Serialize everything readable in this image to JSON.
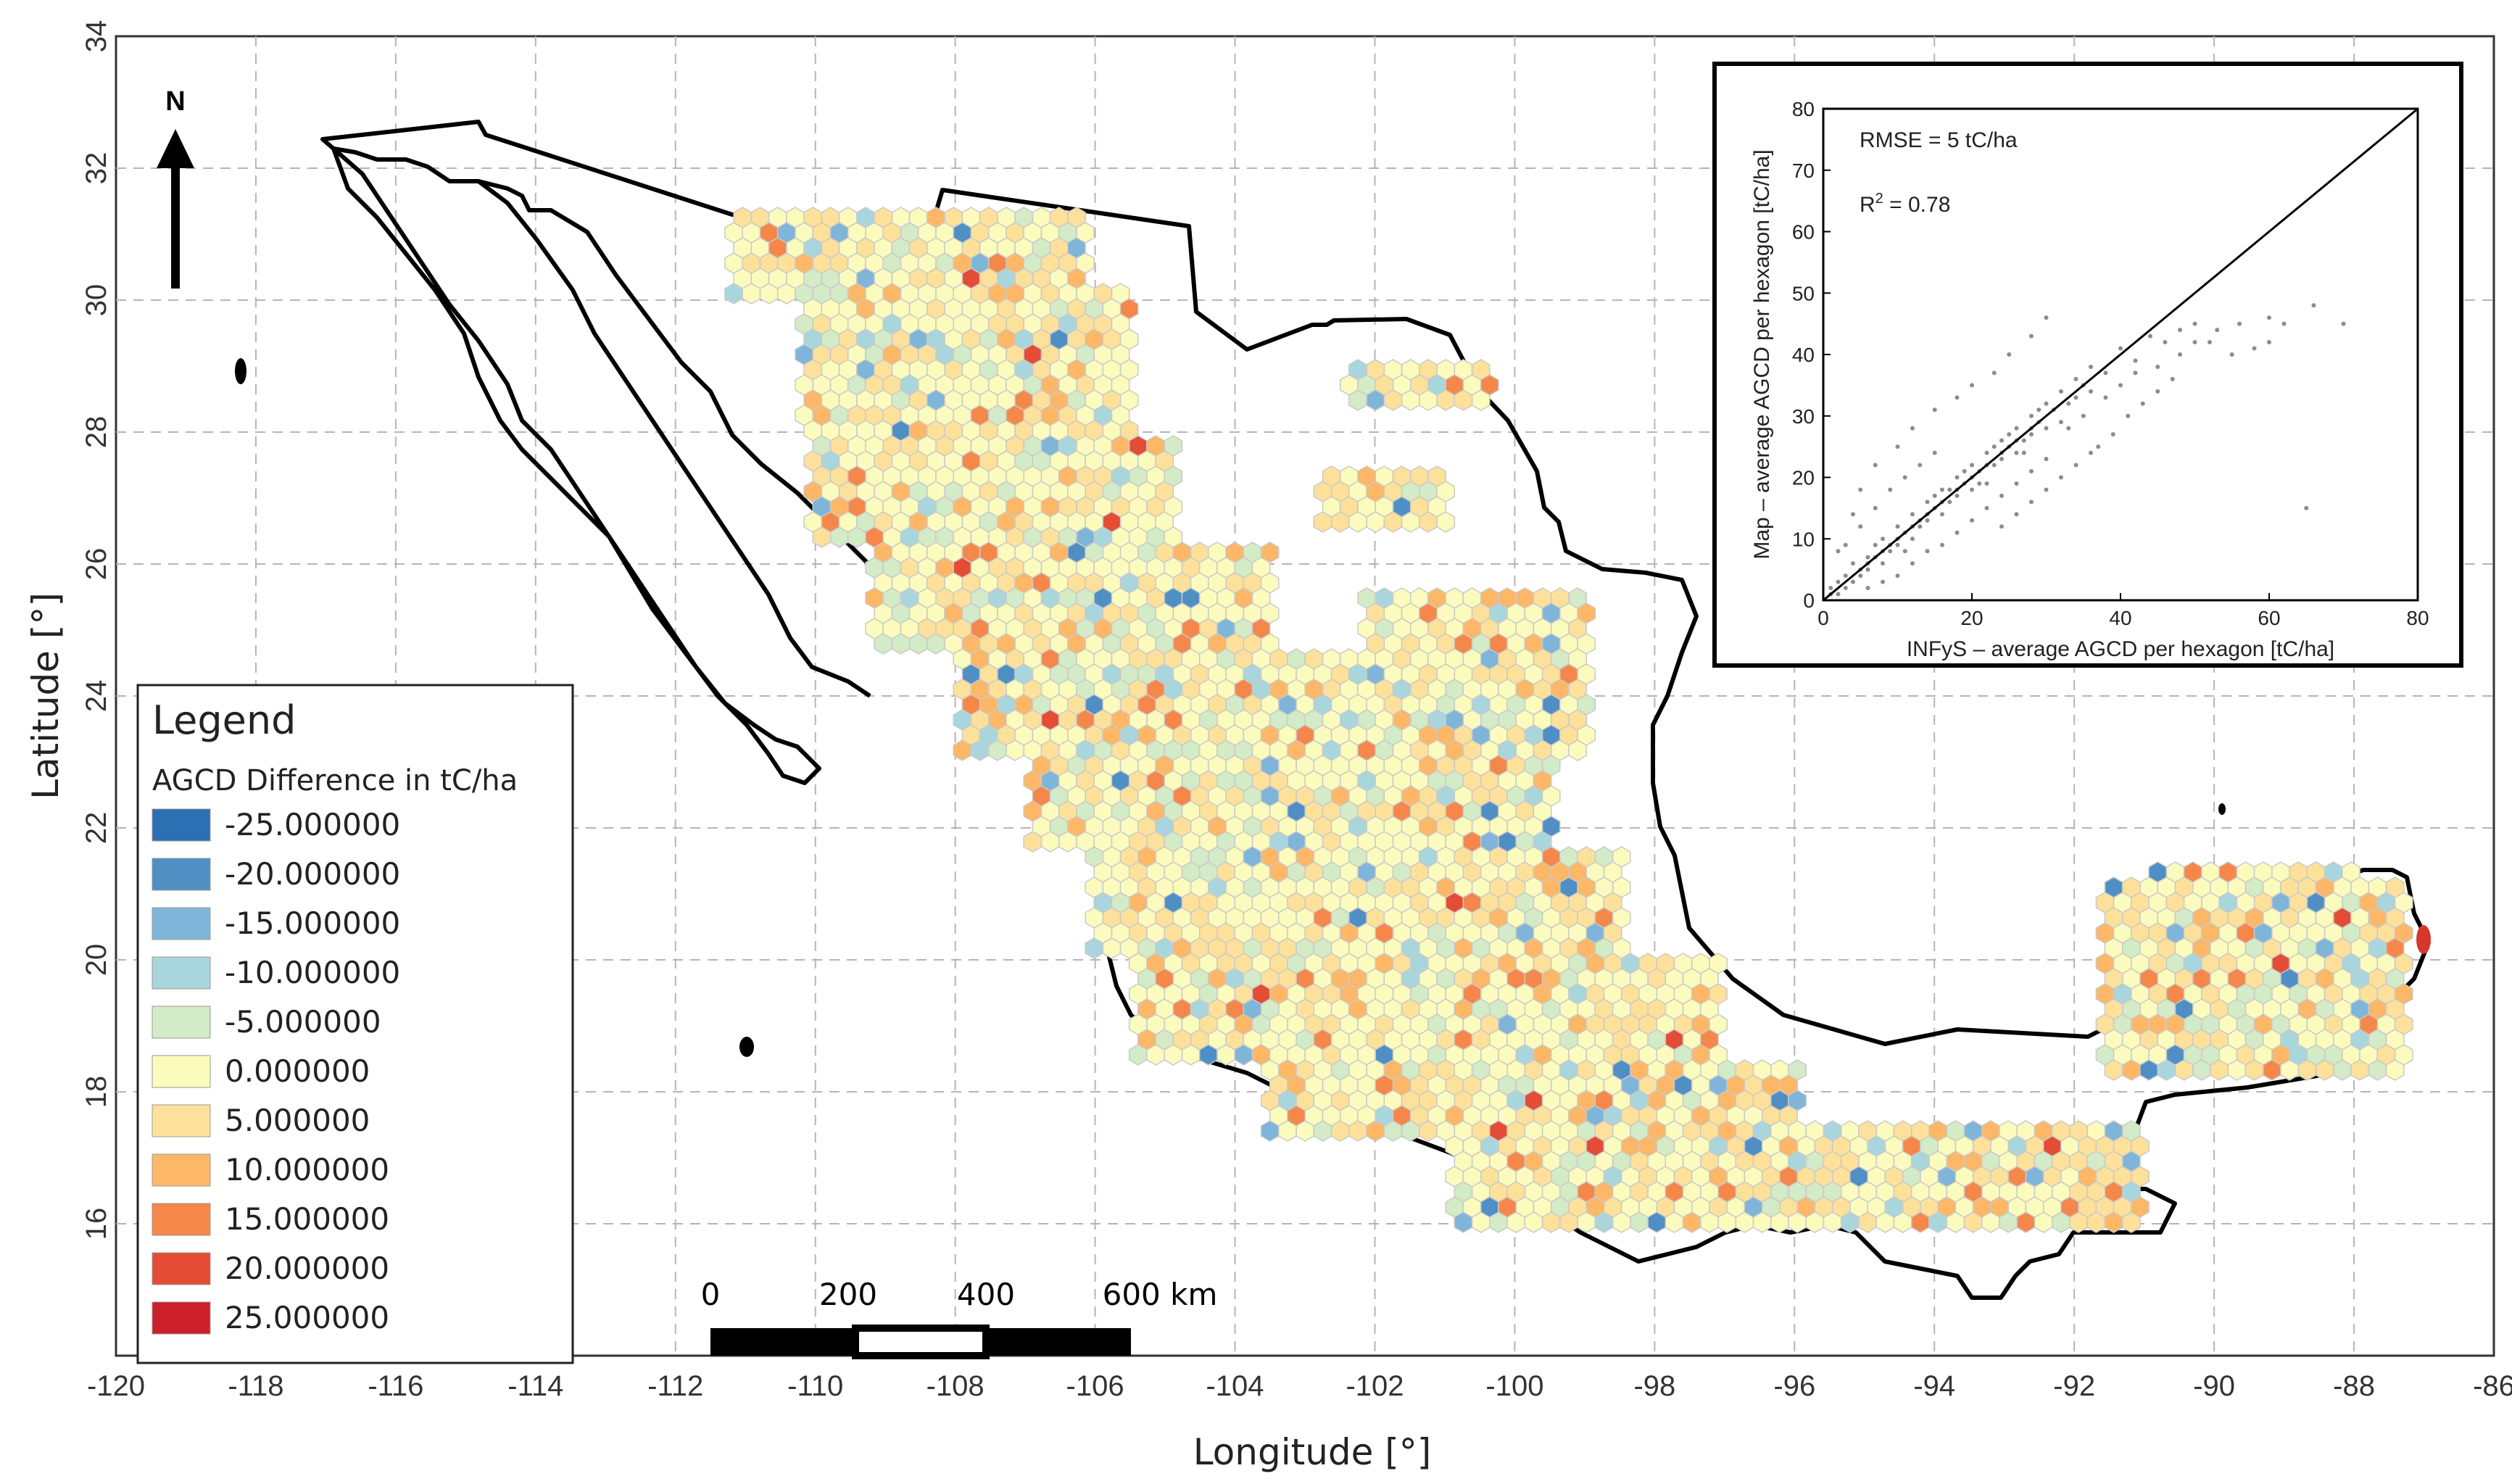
{
  "map": {
    "x_axis": {
      "title": "Longitude [°]",
      "min": -120,
      "max": -86,
      "ticks": [
        -120,
        -118,
        -116,
        -114,
        -112,
        -110,
        -108,
        -106,
        -104,
        -102,
        -100,
        -98,
        -96,
        -94,
        -92,
        -90,
        -88,
        -86
      ]
    },
    "y_axis": {
      "title": "Latitude [°]",
      "min": 14,
      "max": 34,
      "ticks": [
        16,
        18,
        20,
        22,
        24,
        26,
        28,
        30,
        32,
        34
      ]
    },
    "gridlines": true,
    "north_arrow_label": "N",
    "scale_bar": {
      "labels": [
        "0",
        "200",
        "400",
        "600 km"
      ]
    },
    "legend": {
      "title": "Legend",
      "subtitle": "AGCD Difference in tC/ha",
      "placement": "bottom-left",
      "items": [
        {
          "label": "-25.000000",
          "color": "#2c6fb2"
        },
        {
          "label": "-20.000000",
          "color": "#4f8fc4"
        },
        {
          "label": "-15.000000",
          "color": "#7fb5d8"
        },
        {
          "label": "-10.000000",
          "color": "#a9d6dc"
        },
        {
          "label": "-5.000000",
          "color": "#d3ebc6"
        },
        {
          "label": "0.000000",
          "color": "#fbfbbd"
        },
        {
          "label": "5.000000",
          "color": "#fde19a"
        },
        {
          "label": "10.000000",
          "color": "#fdb766"
        },
        {
          "label": "15.000000",
          "color": "#f5874a"
        },
        {
          "label": "20.000000",
          "color": "#e44c35"
        },
        {
          "label": "25.000000",
          "color": "#cc1f2b"
        }
      ]
    }
  },
  "inset": {
    "placement": "top-right",
    "xlabel": "INFyS – average AGCD per hexagon [tC/ha]",
    "ylabel": "Map – average AGCD per hexagon [tC/ha]",
    "xlim": [
      0,
      80
    ],
    "ylim": [
      0,
      80
    ],
    "x_ticks": [
      0,
      20,
      40,
      60,
      80
    ],
    "y_ticks": [
      0,
      10,
      20,
      30,
      40,
      50,
      60,
      70,
      80
    ],
    "rmse_label": "RMSE = 5 tC/ha",
    "r2_label_prefix": "R",
    "r2_label_superscript": "2",
    "r2_label_suffix": " = 0.78",
    "point_color": "#8c8c8c"
  },
  "chart_data": {
    "type": "scatter",
    "xlabel": "INFyS – average AGCD per hexagon [tC/ha]",
    "ylabel": "Map – average AGCD per hexagon [tC/ha]",
    "xlim": [
      0,
      80
    ],
    "ylim": [
      0,
      80
    ],
    "reference_line": {
      "x": [
        0,
        80
      ],
      "y": [
        0,
        80
      ]
    },
    "annotations": [
      "RMSE = 5 tC/ha",
      "R2 = 0.78"
    ],
    "points": [
      [
        2,
        3
      ],
      [
        3,
        2
      ],
      [
        4,
        6
      ],
      [
        5,
        4
      ],
      [
        6,
        7
      ],
      [
        6,
        5
      ],
      [
        7,
        9
      ],
      [
        8,
        6
      ],
      [
        8,
        10
      ],
      [
        9,
        8
      ],
      [
        10,
        12
      ],
      [
        10,
        9
      ],
      [
        11,
        11
      ],
      [
        12,
        10
      ],
      [
        12,
        14
      ],
      [
        13,
        12
      ],
      [
        14,
        16
      ],
      [
        14,
        13
      ],
      [
        15,
        15
      ],
      [
        16,
        14
      ],
      [
        16,
        18
      ],
      [
        17,
        16
      ],
      [
        18,
        20
      ],
      [
        18,
        17
      ],
      [
        19,
        19
      ],
      [
        20,
        18
      ],
      [
        20,
        22
      ],
      [
        21,
        21
      ],
      [
        22,
        19
      ],
      [
        22,
        24
      ],
      [
        23,
        22
      ],
      [
        24,
        26
      ],
      [
        24,
        23
      ],
      [
        25,
        25
      ],
      [
        26,
        24
      ],
      [
        26,
        28
      ],
      [
        27,
        26
      ],
      [
        28,
        30
      ],
      [
        28,
        27
      ],
      [
        29,
        29
      ],
      [
        30,
        28
      ],
      [
        30,
        32
      ],
      [
        31,
        31
      ],
      [
        32,
        29
      ],
      [
        32,
        34
      ],
      [
        33,
        32
      ],
      [
        34,
        36
      ],
      [
        34,
        33
      ],
      [
        35,
        35
      ],
      [
        36,
        34
      ],
      [
        36,
        38
      ],
      [
        38,
        37
      ],
      [
        40,
        41
      ],
      [
        42,
        39
      ],
      [
        44,
        43
      ],
      [
        46,
        42
      ],
      [
        48,
        44
      ],
      [
        50,
        45
      ],
      [
        52,
        42
      ],
      [
        55,
        40
      ],
      [
        58,
        41
      ],
      [
        60,
        46
      ],
      [
        62,
        45
      ],
      [
        65,
        15
      ],
      [
        70,
        45
      ],
      [
        66,
        48
      ],
      [
        3,
        9
      ],
      [
        5,
        12
      ],
      [
        7,
        15
      ],
      [
        9,
        18
      ],
      [
        11,
        20
      ],
      [
        13,
        22
      ],
      [
        15,
        24
      ],
      [
        6,
        2
      ],
      [
        8,
        3
      ],
      [
        10,
        4
      ],
      [
        12,
        6
      ],
      [
        14,
        8
      ],
      [
        16,
        9
      ],
      [
        18,
        11
      ],
      [
        20,
        13
      ],
      [
        22,
        15
      ],
      [
        24,
        17
      ],
      [
        26,
        19
      ],
      [
        28,
        21
      ],
      [
        30,
        23
      ],
      [
        5,
        18
      ],
      [
        7,
        22
      ],
      [
        10,
        25
      ],
      [
        12,
        28
      ],
      [
        15,
        31
      ],
      [
        18,
        33
      ],
      [
        20,
        35
      ],
      [
        23,
        37
      ],
      [
        25,
        40
      ],
      [
        28,
        43
      ],
      [
        30,
        46
      ],
      [
        2,
        8
      ],
      [
        4,
        14
      ],
      [
        33,
        28
      ],
      [
        35,
        30
      ],
      [
        38,
        33
      ],
      [
        40,
        35
      ],
      [
        42,
        37
      ],
      [
        45,
        38
      ],
      [
        48,
        40
      ],
      [
        50,
        42
      ],
      [
        53,
        44
      ],
      [
        56,
        45
      ],
      [
        60,
        42
      ],
      [
        37,
        25
      ],
      [
        39,
        27
      ],
      [
        41,
        30
      ],
      [
        43,
        32
      ],
      [
        45,
        34
      ],
      [
        47,
        36
      ],
      [
        24,
        12
      ],
      [
        26,
        14
      ],
      [
        28,
        16
      ],
      [
        30,
        18
      ],
      [
        32,
        20
      ],
      [
        34,
        22
      ],
      [
        36,
        24
      ],
      [
        1,
        1
      ],
      [
        2,
        1
      ],
      [
        1,
        2
      ],
      [
        3,
        4
      ],
      [
        4,
        3
      ],
      [
        5,
        5
      ],
      [
        6,
        6
      ],
      [
        7,
        7
      ],
      [
        8,
        8
      ],
      [
        9,
        9
      ],
      [
        10,
        10
      ],
      [
        11,
        8
      ],
      [
        12,
        12
      ],
      [
        13,
        13
      ],
      [
        14,
        14
      ],
      [
        15,
        17
      ],
      [
        16,
        16
      ],
      [
        17,
        18
      ],
      [
        18,
        18
      ],
      [
        19,
        21
      ],
      [
        20,
        20
      ],
      [
        21,
        19
      ],
      [
        22,
        22
      ],
      [
        23,
        25
      ],
      [
        24,
        24
      ],
      [
        25,
        27
      ],
      [
        26,
        26
      ],
      [
        27,
        24
      ],
      [
        28,
        28
      ],
      [
        29,
        31
      ]
    ]
  }
}
